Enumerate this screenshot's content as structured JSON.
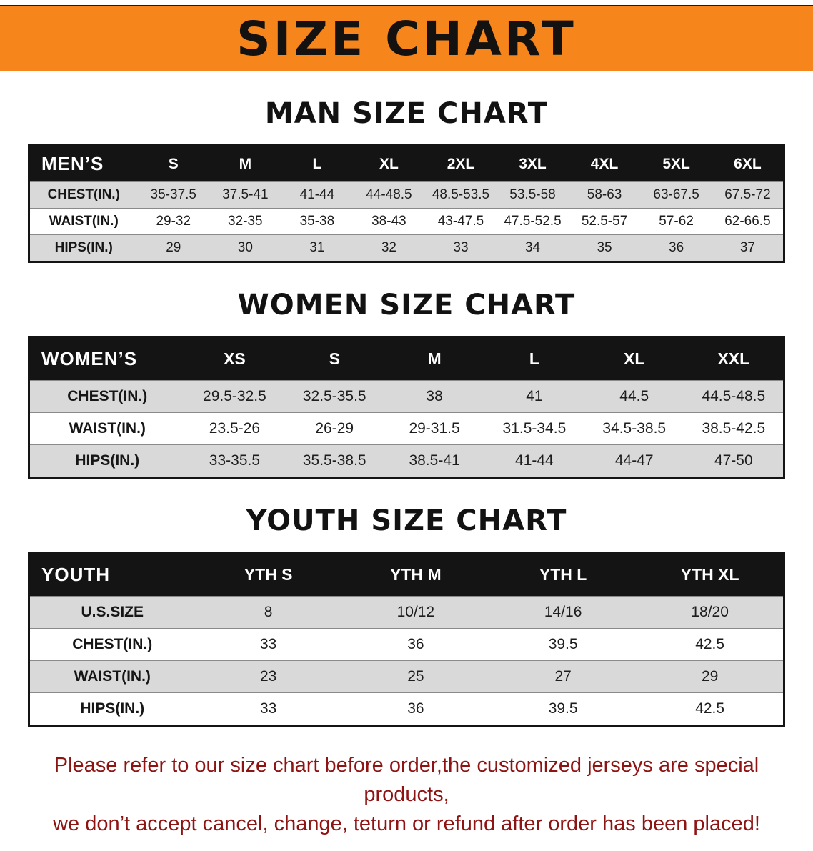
{
  "banner": {
    "title": "SIZE CHART"
  },
  "colors": {
    "banner_bg": "#f6861c",
    "notice_text": "#8e1313",
    "row_shade": "#d9d9d9",
    "header_bar": "#141414"
  },
  "sections": [
    {
      "title": "MAN SIZE CHART",
      "header": [
        "MEN’S",
        "S",
        "M",
        "L",
        "XL",
        "2XL",
        "3XL",
        "4XL",
        "5XL",
        "6XL"
      ],
      "rows": [
        [
          "CHEST(IN.)",
          "35-37.5",
          "37.5-41",
          "41-44",
          "44-48.5",
          "48.5-53.5",
          "53.5-58",
          "58-63",
          "63-67.5",
          "67.5-72"
        ],
        [
          "WAIST(IN.)",
          "29-32",
          "32-35",
          "35-38",
          "38-43",
          "43-47.5",
          "47.5-52.5",
          "52.5-57",
          "57-62",
          "62-66.5"
        ],
        [
          "HIPS(IN.)",
          "29",
          "30",
          "31",
          "32",
          "33",
          "34",
          "35",
          "36",
          "37"
        ]
      ]
    },
    {
      "title": "WOMEN SIZE CHART",
      "header": [
        "WOMEN’S",
        "XS",
        "S",
        "M",
        "L",
        "XL",
        "XXL"
      ],
      "rows": [
        [
          "CHEST(IN.)",
          "29.5-32.5",
          "32.5-35.5",
          "38",
          "41",
          "44.5",
          "44.5-48.5"
        ],
        [
          "WAIST(IN.)",
          "23.5-26",
          "26-29",
          "29-31.5",
          "31.5-34.5",
          "34.5-38.5",
          "38.5-42.5"
        ],
        [
          "HIPS(IN.)",
          "33-35.5",
          "35.5-38.5",
          "38.5-41",
          "41-44",
          "44-47",
          "47-50"
        ]
      ]
    },
    {
      "title": "YOUTH SIZE CHART",
      "header": [
        "YOUTH",
        "YTH S",
        "YTH M",
        "YTH L",
        "YTH XL"
      ],
      "rows": [
        [
          "U.S.SIZE",
          "8",
          "10/12",
          "14/16",
          "18/20"
        ],
        [
          "CHEST(IN.)",
          "33",
          "36",
          "39.5",
          "42.5"
        ],
        [
          "WAIST(IN.)",
          "23",
          "25",
          "27",
          "29"
        ],
        [
          "HIPS(IN.)",
          "33",
          "36",
          "39.5",
          "42.5"
        ]
      ]
    }
  ],
  "footer": {
    "lines": [
      "Please refer to our size chart before order,the customized jerseys are special products,",
      "we don’t accept cancel, change, teturn or refund after order has been placed!"
    ]
  }
}
